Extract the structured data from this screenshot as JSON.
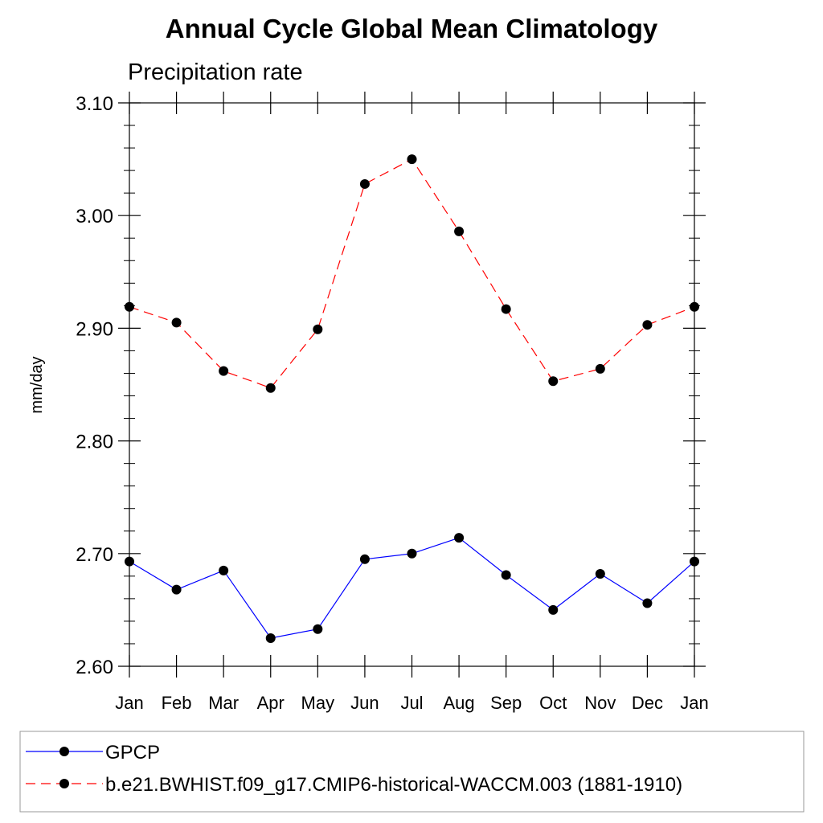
{
  "chart_data": {
    "type": "line",
    "title": "Annual Cycle Global Mean Climatology",
    "subtitle": "Precipitation rate",
    "xlabel": "",
    "ylabel": "mm/day",
    "categories": [
      "Jan",
      "Feb",
      "Mar",
      "Apr",
      "May",
      "Jun",
      "Jul",
      "Aug",
      "Sep",
      "Oct",
      "Nov",
      "Dec",
      "Jan"
    ],
    "ylim": [
      2.6,
      3.1
    ],
    "yticks": [
      "2.60",
      "2.70",
      "2.80",
      "2.90",
      "3.00",
      "3.10"
    ],
    "grid": false,
    "legend_position": "bottom",
    "series": [
      {
        "name": "GPCP",
        "color": "#0000ff",
        "line_style": "solid",
        "marker": "filled-circle",
        "values": [
          2.693,
          2.668,
          2.685,
          2.625,
          2.633,
          2.695,
          2.7,
          2.714,
          2.681,
          2.65,
          2.682,
          2.656,
          2.693
        ]
      },
      {
        "name": "b.e21.BWHIST.f09_g17.CMIP6-historical-WACCM.003 (1881-1910)",
        "color": "#ff0000",
        "line_style": "dashed",
        "marker": "filled-circle",
        "values": [
          2.919,
          2.905,
          2.862,
          2.847,
          2.899,
          3.028,
          3.05,
          2.986,
          2.917,
          2.853,
          2.864,
          2.903,
          2.919
        ]
      }
    ]
  }
}
